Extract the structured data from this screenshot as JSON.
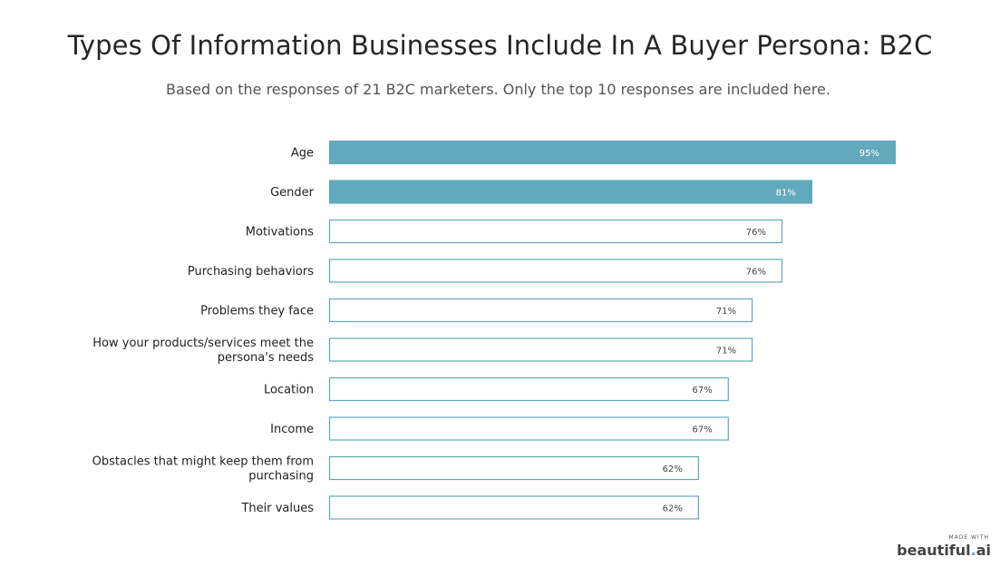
{
  "title": "Types Of Information Businesses Include In A Buyer Persona: B2C",
  "subtitle": "Based on the responses of 21 B2C marketers. Only the top 10 responses are included here.",
  "colors": {
    "highlight_fill": "#62a9bb",
    "outline": "#62a9bb",
    "highlight_text": "#ffffff",
    "normal_text": "#444444"
  },
  "chart_data": {
    "type": "bar",
    "orientation": "horizontal",
    "categories": [
      [
        "Age"
      ],
      [
        "Gender"
      ],
      [
        "Motivations"
      ],
      [
        "Purchasing behaviors"
      ],
      [
        "Problems they face"
      ],
      [
        "How your products/services meet the",
        "persona's needs"
      ],
      [
        "Location"
      ],
      [
        "Income"
      ],
      [
        "Obstacles that might keep them from",
        "purchasing"
      ],
      [
        "Their values"
      ]
    ],
    "values": [
      95,
      81,
      76,
      76,
      71,
      71,
      67,
      67,
      62,
      62
    ],
    "value_labels": [
      "95%",
      "81%",
      "76%",
      "76%",
      "71%",
      "71%",
      "67%",
      "67%",
      "62%",
      "62%"
    ],
    "highlighted": [
      true,
      true,
      false,
      false,
      false,
      false,
      false,
      false,
      false,
      false
    ],
    "xlim": [
      0,
      95
    ],
    "grid": false,
    "legend": "none"
  },
  "badge": {
    "made_with": "MADE WITH",
    "brand_name": "beautiful",
    "brand_dot": ".",
    "brand_suffix": "ai"
  }
}
